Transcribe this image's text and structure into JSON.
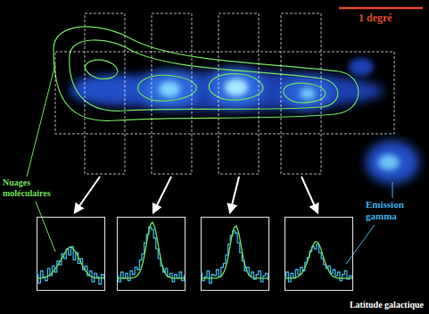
{
  "scale_label": "1 degré",
  "annotations": {
    "clouds": "Nuages moléculaires",
    "gamma": "Emission gamma",
    "x_label": "Latitude galactique"
  },
  "chart_data": [
    {
      "type": "line",
      "tick_labels": false,
      "xlim": [
        0,
        29
      ],
      "ylim": [
        -1,
        5
      ],
      "x": [
        0,
        1,
        2,
        3,
        4,
        5,
        6,
        7,
        8,
        9,
        10,
        11,
        12,
        13,
        14,
        15,
        16,
        17,
        18,
        19,
        20,
        21,
        22,
        23,
        24,
        25,
        26,
        27,
        28,
        29
      ],
      "series": [
        {
          "color": "#3cb4e6",
          "line_style": "step",
          "values": [
            0.3,
            -0.4,
            0.6,
            0.1,
            -0.2,
            0.8,
            0.2,
            1.0,
            0.5,
            1.4,
            1.1,
            2.0,
            1.6,
            2.4,
            1.9,
            2.6,
            1.5,
            2.1,
            1.2,
            1.6,
            0.7,
            1.0,
            0.2,
            0.6,
            -0.3,
            0.4,
            0.1,
            -0.5,
            0.3,
            0.0
          ]
        },
        {
          "color": "#6ee05a",
          "line_style": "solid",
          "values": [
            0,
            0,
            0,
            0.05,
            0.1,
            0.2,
            0.35,
            0.55,
            0.8,
            1.1,
            1.4,
            1.75,
            2.1,
            2.4,
            2.55,
            2.5,
            2.3,
            2.0,
            1.6,
            1.2,
            0.85,
            0.55,
            0.3,
            0.15,
            0.07,
            0.03,
            0,
            0,
            0,
            0
          ]
        }
      ]
    },
    {
      "type": "line",
      "tick_labels": false,
      "xlim": [
        0,
        29
      ],
      "ylim": [
        -1,
        5
      ],
      "x": [
        0,
        1,
        2,
        3,
        4,
        5,
        6,
        7,
        8,
        9,
        10,
        11,
        12,
        13,
        14,
        15,
        16,
        17,
        18,
        19,
        20,
        21,
        22,
        23,
        24,
        25,
        26,
        27,
        28,
        29
      ],
      "series": [
        {
          "color": "#3cb4e6",
          "line_style": "step",
          "values": [
            0.2,
            -0.3,
            0.5,
            0.0,
            0.4,
            -0.2,
            0.6,
            0.3,
            0.9,
            0.7,
            1.5,
            2.0,
            2.9,
            3.6,
            4.2,
            4.0,
            3.3,
            2.4,
            1.6,
            1.0,
            0.5,
            0.8,
            0.1,
            0.4,
            -0.3,
            0.3,
            0.0,
            0.5,
            -0.2,
            0.2
          ]
        },
        {
          "color": "#6ee05a",
          "line_style": "solid",
          "values": [
            0,
            0,
            0,
            0,
            0,
            0,
            0.02,
            0.05,
            0.12,
            0.3,
            0.65,
            1.3,
            2.3,
            3.4,
            4.3,
            4.6,
            4.2,
            3.3,
            2.2,
            1.2,
            0.6,
            0.25,
            0.1,
            0.04,
            0,
            0,
            0,
            0,
            0,
            0
          ]
        }
      ]
    },
    {
      "type": "line",
      "tick_labels": false,
      "xlim": [
        0,
        29
      ],
      "ylim": [
        -1,
        5
      ],
      "x": [
        0,
        1,
        2,
        3,
        4,
        5,
        6,
        7,
        8,
        9,
        10,
        11,
        12,
        13,
        14,
        15,
        16,
        17,
        18,
        19,
        20,
        21,
        22,
        23,
        24,
        25,
        26,
        27,
        28,
        29
      ],
      "series": [
        {
          "color": "#3cb4e6",
          "line_style": "step",
          "values": [
            0.4,
            -0.2,
            0.1,
            0.6,
            -0.4,
            0.3,
            0.2,
            0.7,
            0.1,
            0.9,
            1.2,
            1.9,
            2.8,
            3.5,
            3.9,
            3.7,
            2.9,
            2.1,
            1.4,
            0.6,
            0.9,
            0.2,
            0.5,
            -0.1,
            0.3,
            0.6,
            -0.3,
            0.2,
            0.4,
            -0.1
          ]
        },
        {
          "color": "#6ee05a",
          "line_style": "solid",
          "values": [
            0,
            0,
            0,
            0,
            0,
            0,
            0,
            0.03,
            0.1,
            0.25,
            0.6,
            1.2,
            2.2,
            3.3,
            4.1,
            4.3,
            3.8,
            2.8,
            1.7,
            0.9,
            0.4,
            0.15,
            0.05,
            0,
            0,
            0,
            0,
            0,
            0,
            0
          ]
        }
      ]
    },
    {
      "type": "line",
      "tick_labels": false,
      "xlim": [
        0,
        29
      ],
      "ylim": [
        -1,
        5
      ],
      "x": [
        0,
        1,
        2,
        3,
        4,
        5,
        6,
        7,
        8,
        9,
        10,
        11,
        12,
        13,
        14,
        15,
        16,
        17,
        18,
        19,
        20,
        21,
        22,
        23,
        24,
        25,
        26,
        27,
        28,
        29
      ],
      "series": [
        {
          "color": "#3cb4e6",
          "line_style": "step",
          "values": [
            0.1,
            0.5,
            -0.3,
            0.4,
            0.0,
            0.7,
            0.3,
            0.9,
            0.6,
            1.3,
            1.7,
            2.2,
            2.6,
            2.4,
            2.8,
            2.1,
            1.6,
            1.1,
            0.8,
            1.0,
            0.4,
            0.7,
            0.2,
            0.5,
            -0.2,
            0.3,
            0.6,
            -0.1,
            0.2,
            0.1
          ]
        },
        {
          "color": "#6ee05a",
          "line_style": "solid",
          "values": [
            0,
            0,
            0,
            0,
            0.03,
            0.08,
            0.18,
            0.35,
            0.65,
            1.05,
            1.6,
            2.2,
            2.7,
            3.0,
            2.95,
            2.6,
            2.0,
            1.4,
            0.9,
            0.5,
            0.25,
            0.1,
            0.04,
            0,
            0,
            0,
            0,
            0,
            0,
            0
          ]
        }
      ]
    }
  ]
}
